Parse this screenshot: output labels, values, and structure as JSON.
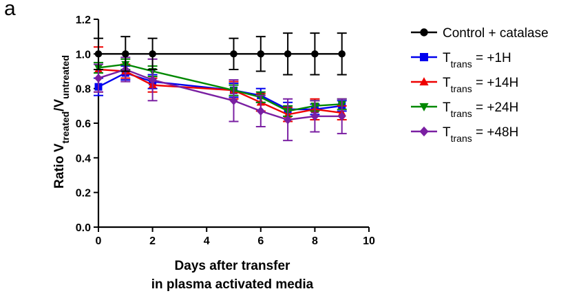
{
  "panel_label": "a",
  "chart_data": {
    "type": "line",
    "title": "",
    "xlabel_lines": [
      "Days after transfer",
      "in plasma activated media"
    ],
    "ylabel": {
      "prefix": "Ratio V",
      "sub1": "treated",
      "mid": "/V",
      "sub2": "untreated"
    },
    "xlim": [
      0,
      10
    ],
    "ylim": [
      0.0,
      1.2
    ],
    "xticks": [
      0,
      2,
      4,
      6,
      8,
      10
    ],
    "xtick_labels": [
      "0",
      "2",
      "4",
      "6",
      "8",
      "10"
    ],
    "yticks": [
      0.0,
      0.2,
      0.4,
      0.6,
      0.8,
      1.0,
      1.2
    ],
    "ytick_labels": [
      "0.0",
      "0.2",
      "0.4",
      "0.6",
      "0.8",
      "1.0",
      "1.2"
    ],
    "grid": false,
    "legend_position": "right",
    "series": [
      {
        "key": "control",
        "legend": {
          "main": "Control + catalase"
        },
        "color": "#000000",
        "marker": "circle",
        "x": [
          0,
          1,
          2,
          5,
          6,
          7,
          8,
          9
        ],
        "y": [
          1.0,
          1.0,
          1.0,
          1.0,
          1.0,
          1.0,
          1.0,
          1.0
        ],
        "err": [
          0.09,
          0.1,
          0.09,
          0.09,
          0.1,
          0.12,
          0.12,
          0.12
        ]
      },
      {
        "key": "t1h",
        "legend": {
          "main": "T",
          "sub": "trans",
          "suffix": " = +1H"
        },
        "color": "#0000ee",
        "marker": "square",
        "x": [
          0,
          1,
          2,
          5,
          6,
          7,
          8,
          9
        ],
        "y": [
          0.81,
          0.89,
          0.84,
          0.79,
          0.76,
          0.68,
          0.68,
          0.7
        ],
        "err": [
          0.05,
          0.04,
          0.04,
          0.04,
          0.04,
          0.04,
          0.03,
          0.03
        ]
      },
      {
        "key": "t14h",
        "legend": {
          "main": "T",
          "sub": "trans",
          "suffix": " = +14H"
        },
        "color": "#ee0000",
        "marker": "triangle-up",
        "x": [
          0,
          1,
          2,
          5,
          6,
          7,
          8,
          9
        ],
        "y": [
          0.91,
          0.9,
          0.82,
          0.79,
          0.72,
          0.65,
          0.68,
          0.66
        ],
        "err": [
          0.13,
          0.04,
          0.04,
          0.05,
          0.05,
          0.04,
          0.06,
          0.04
        ]
      },
      {
        "key": "t24h",
        "legend": {
          "main": "T",
          "sub": "trans",
          "suffix": " = +24H"
        },
        "color": "#008800",
        "marker": "triangle-down",
        "x": [
          0,
          1,
          2,
          5,
          6,
          7,
          8,
          9
        ],
        "y": [
          0.92,
          0.94,
          0.9,
          0.79,
          0.75,
          0.67,
          0.7,
          0.71
        ],
        "err": [
          0.03,
          0.03,
          0.03,
          0.03,
          0.03,
          0.03,
          0.03,
          0.03
        ]
      },
      {
        "key": "t48h",
        "legend": {
          "main": "T",
          "sub": "trans",
          "suffix": " = +48H"
        },
        "color": "#7a1fa2",
        "marker": "diamond",
        "x": [
          0,
          1,
          2,
          5,
          6,
          7,
          8,
          9
        ],
        "y": [
          0.86,
          0.91,
          0.85,
          0.73,
          0.67,
          0.62,
          0.64,
          0.64
        ],
        "err": [
          0.08,
          0.07,
          0.12,
          0.12,
          0.09,
          0.12,
          0.09,
          0.1
        ]
      }
    ]
  }
}
